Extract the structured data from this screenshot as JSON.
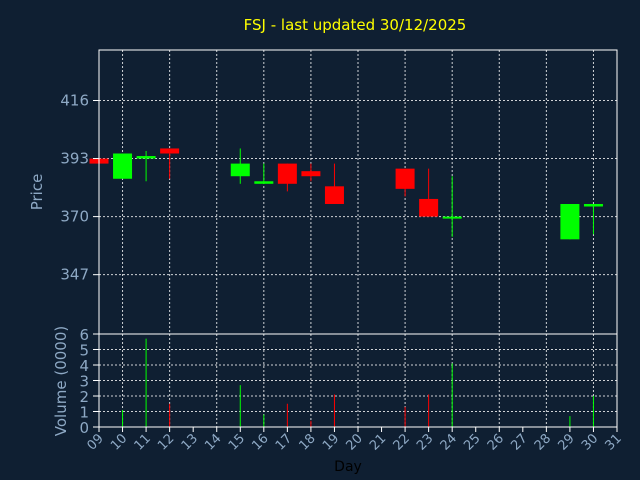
{
  "title": "FSJ - last updated 30/12/2025",
  "colors": {
    "background": "#0f1f32",
    "plot_background": "#0f1f32",
    "grid": "#ffffff",
    "axis_frame": "#ffffff",
    "up": "#00ff00",
    "down": "#ff0000",
    "title": "#ffff00",
    "tick_text": "#8ea9c5",
    "xlabel_text": "#000000"
  },
  "chart_data": {
    "type": "candlestick",
    "title": "FSJ - last updated 30/12/2025",
    "xlabel": "Day",
    "ylabel_price": "Price",
    "ylabel_volume": "Volume (0000)",
    "x_ticks": [
      "09",
      "10",
      "11",
      "12",
      "13",
      "14",
      "15",
      "16",
      "17",
      "18",
      "19",
      "20",
      "21",
      "22",
      "23",
      "24",
      "25",
      "26",
      "27",
      "28",
      "29",
      "30",
      "31"
    ],
    "price_ylim": [
      323.5,
      436
    ],
    "price_ticks": [
      347,
      370,
      393,
      416
    ],
    "volume_ylim": [
      0,
      6
    ],
    "volume_ticks": [
      0,
      1,
      2,
      3,
      4,
      5,
      6
    ],
    "grid": true,
    "candles": [
      {
        "day": 9,
        "open": 393,
        "close": 391,
        "high": 393,
        "low": 391,
        "volume": 0.2
      },
      {
        "day": 10,
        "open": 385,
        "close": 395,
        "high": 395,
        "low": 385,
        "volume": 1.1
      },
      {
        "day": 11,
        "open": 393,
        "close": 394,
        "high": 396,
        "low": 384,
        "volume": 5.7
      },
      {
        "day": 12,
        "open": 397,
        "close": 395,
        "high": 397,
        "low": 385,
        "volume": 1.5
      },
      {
        "day": 15,
        "open": 386,
        "close": 391,
        "high": 397,
        "low": 383,
        "volume": 2.7
      },
      {
        "day": 16,
        "open": 383,
        "close": 384,
        "high": 391,
        "low": 383,
        "volume": 0.8
      },
      {
        "day": 17,
        "open": 391,
        "close": 383,
        "high": 391,
        "low": 380,
        "volume": 1.5
      },
      {
        "day": 18,
        "open": 388,
        "close": 386,
        "high": 391,
        "low": 384,
        "volume": 0.4
      },
      {
        "day": 19,
        "open": 382,
        "close": 375,
        "high": 391,
        "low": 375,
        "volume": 2.1
      },
      {
        "day": 22,
        "open": 389,
        "close": 381,
        "high": 389,
        "low": 378,
        "volume": 1.3
      },
      {
        "day": 23,
        "open": 377,
        "close": 370,
        "high": 389,
        "low": 370,
        "volume": 2.1
      },
      {
        "day": 24,
        "open": 370,
        "close": 370,
        "high": 386,
        "low": 362,
        "volume": 4.1
      },
      {
        "day": 29,
        "open": 361,
        "close": 375,
        "high": 375,
        "low": 361,
        "volume": 0.7
      },
      {
        "day": 30,
        "open": 374,
        "close": 375,
        "high": 375,
        "low": 363,
        "volume": 2.0
      }
    ]
  }
}
